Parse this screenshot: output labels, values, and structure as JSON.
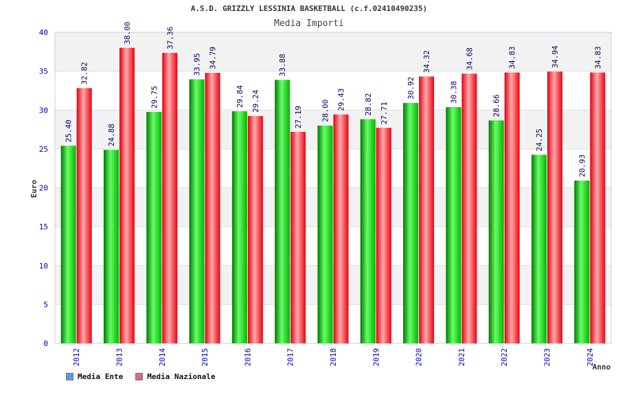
{
  "colors": {
    "ente": "#00cc00",
    "nazionale": "#ee1122",
    "legend_ente": "#5599ee",
    "legend_nazionale": "#dd6699",
    "band": "#f2f2f2",
    "grid": "#dddddd"
  },
  "chart_data": {
    "type": "bar",
    "title": "A.S.D. GRIZZLY LESSINIA BASKETBALL (c.f.02410490235)",
    "subtitle": "Media Importi",
    "xlabel": "Anno",
    "ylabel": "Euro",
    "ylim": [
      0,
      40
    ],
    "yticks": [
      "0",
      "5",
      "10",
      "15",
      "20",
      "25",
      "30",
      "35",
      "40"
    ],
    "categories": [
      "2012",
      "2013",
      "2014",
      "2015",
      "2016",
      "2017",
      "2018",
      "2019",
      "2020",
      "2021",
      "2022",
      "2023",
      "2024"
    ],
    "series": [
      {
        "name": "Media Ente",
        "values": [
          25.4,
          24.88,
          29.75,
          33.95,
          29.84,
          33.88,
          28.0,
          28.82,
          30.92,
          30.38,
          28.66,
          24.25,
          20.93
        ],
        "labels": [
          "25.40",
          "24.88",
          "29.75",
          "33.95",
          "29.84",
          "33.88",
          "28.00",
          "28.82",
          "30.92",
          "30.38",
          "28.66",
          "24.25",
          "20.93"
        ]
      },
      {
        "name": "Media Nazionale",
        "values": [
          32.82,
          38.0,
          37.36,
          34.79,
          29.24,
          27.19,
          29.43,
          27.71,
          34.32,
          34.68,
          34.83,
          34.94,
          34.83
        ],
        "labels": [
          "32.82",
          "38.00",
          "37.36",
          "34.79",
          "29.24",
          "27.19",
          "29.43",
          "27.71",
          "34.32",
          "34.68",
          "34.83",
          "34.94",
          "34.83"
        ]
      }
    ],
    "legend_position": "bottom-left"
  }
}
